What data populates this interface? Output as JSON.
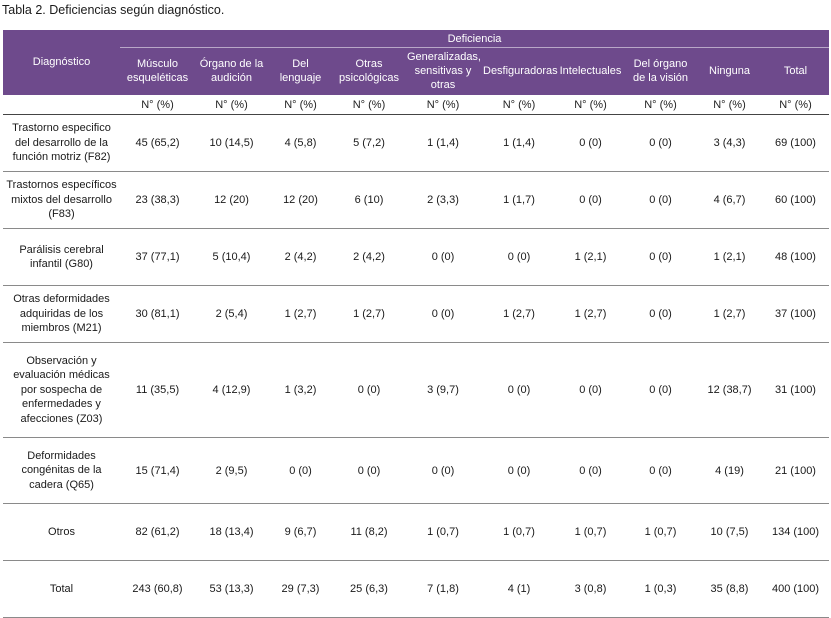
{
  "caption": "Tabla 2. Deficiencias  según diagnóstico.",
  "header": {
    "diagnostico": "Diagnóstico",
    "deficiencia": "Deficiencia",
    "columns": [
      "Músculo esqueléticas",
      "Órgano de la audición",
      "Del lenguaje",
      "Otras psicológicas",
      "Generalizadas, sensitivas y otras",
      "Desfiguradoras",
      "Intelectuales",
      "Del órgano de la visión",
      "Ninguna",
      "Total"
    ],
    "unit": "N° (%)"
  },
  "rows": [
    {
      "name": "Trastorno especifico del desarrollo de la función motriz (F82)",
      "values": [
        "45 (65,2)",
        "10 (14,5)",
        "4 (5,8)",
        "5 (7,2)",
        "1 (1,4)",
        "1 (1,4)",
        "0 (0)",
        "0 (0)",
        "3 (4,3)",
        "69 (100)"
      ]
    },
    {
      "name": "Trastornos específicos mixtos del desarrollo (F83)",
      "values": [
        "23 (38,3)",
        "12 (20)",
        "12 (20)",
        "6 (10)",
        "2 (3,3)",
        "1 (1,7)",
        "0 (0)",
        "0 (0)",
        "4 (6,7)",
        "60 (100)"
      ]
    },
    {
      "name": "Parálisis cerebral infantil (G80)",
      "values": [
        "37 (77,1)",
        "5 (10,4)",
        "2 (4,2)",
        "2 (4,2)",
        "0 (0)",
        "0 (0)",
        "1 (2,1)",
        "0 (0)",
        "1 (2,1)",
        "48 (100)"
      ]
    },
    {
      "name": "Otras deformidades adquiridas de los miembros (M21)",
      "values": [
        "30 (81,1)",
        "2 (5,4)",
        "1 (2,7)",
        "1 (2,7)",
        "0 (0)",
        "1 (2,7)",
        "1 (2,7)",
        "0 (0)",
        "1 (2,7)",
        "37 (100)"
      ]
    },
    {
      "name": "Observación y evaluación médicas por sospecha de enfermedades y afecciones (Z03)",
      "values": [
        "11 (35,5)",
        "4 (12,9)",
        "1 (3,2)",
        "0 (0)",
        "3 (9,7)",
        "0 (0)",
        "0 (0)",
        "0 (0)",
        "12 (38,7)",
        "31 (100)"
      ]
    },
    {
      "name": "Deformidades congénitas de la cadera (Q65)",
      "values": [
        "15 (71,4)",
        "2 (9,5)",
        "0 (0)",
        "0 (0)",
        "0 (0)",
        "0 (0)",
        "0 (0)",
        "0 (0)",
        "4 (19)",
        "21 (100)"
      ]
    },
    {
      "name": "Otros",
      "values": [
        "82 (61,2)",
        "18 (13,4)",
        "9 (6,7)",
        "11 (8,2)",
        "1 (0,7)",
        "1 (0,7)",
        "1 (0,7)",
        "1 (0,7)",
        "10 (7,5)",
        "134 (100)"
      ]
    },
    {
      "name": "Total",
      "values": [
        "243 (60,8)",
        "53 (13,3)",
        "29 (7,3)",
        "25 (6,3)",
        "7 (1,8)",
        "4 (1)",
        "3 (0,8)",
        "1 (0,3)",
        "35 (8,8)",
        "400 (100)"
      ]
    }
  ],
  "colors": {
    "header_bg": "#6e4a8c",
    "header_text": "#ffffff",
    "rule": "#8a8a8a"
  }
}
